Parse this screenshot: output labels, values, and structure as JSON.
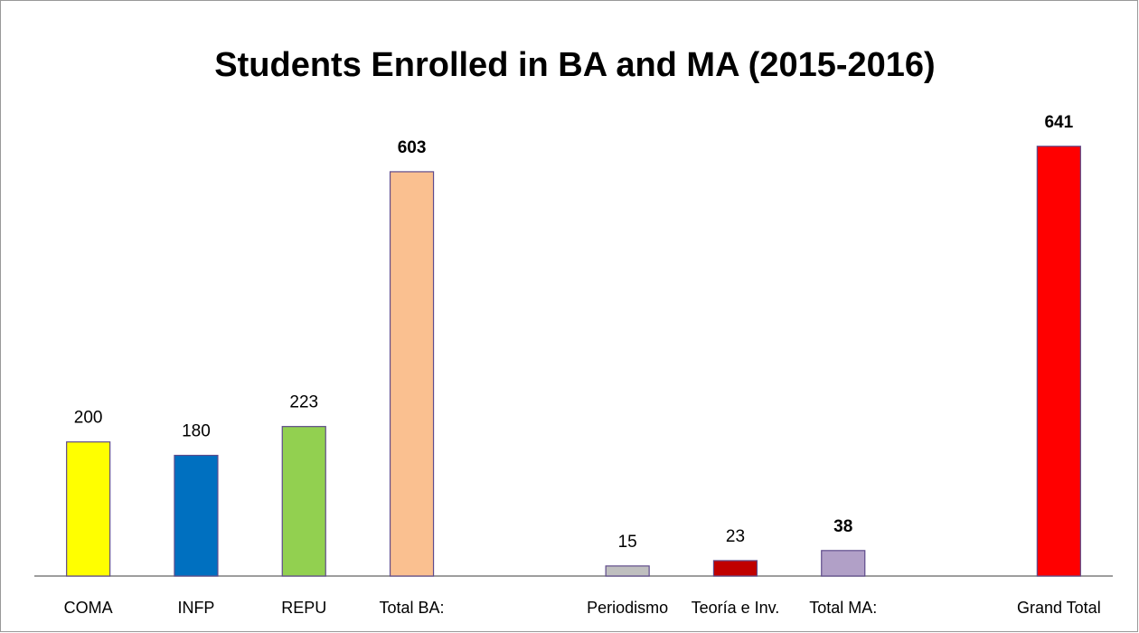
{
  "chart_data": {
    "type": "bar",
    "title": "Students Enrolled in BA and MA (2015-2016)",
    "categories": [
      "COMA",
      "INFP",
      "REPU",
      "Total BA:",
      null,
      "Periodismo",
      "Teoría e Inv.",
      "Total MA:",
      null,
      "Grand Total"
    ],
    "values": [
      200,
      180,
      223,
      603,
      null,
      15,
      23,
      38,
      null,
      641
    ],
    "colors": [
      "#ffff00",
      "#0070c0",
      "#92d050",
      "#fac090",
      null,
      "#bfbfbf",
      "#c00000",
      "#b1a0c7",
      null,
      "#ff0000"
    ],
    "bold_labels": [
      false,
      false,
      false,
      true,
      false,
      false,
      false,
      true,
      false,
      true
    ],
    "ylim": [
      0,
      700
    ]
  }
}
